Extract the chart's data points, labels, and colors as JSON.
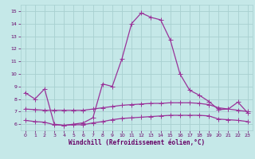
{
  "xlabel": "Windchill (Refroidissement éolien,°C)",
  "xlim": [
    -0.5,
    23.5
  ],
  "ylim": [
    5.5,
    15.5
  ],
  "yticks": [
    6,
    7,
    8,
    9,
    10,
    11,
    12,
    13,
    14,
    15
  ],
  "xticks": [
    0,
    1,
    2,
    3,
    4,
    5,
    6,
    7,
    8,
    9,
    10,
    11,
    12,
    13,
    14,
    15,
    16,
    17,
    18,
    19,
    20,
    21,
    22,
    23
  ],
  "bg_color": "#c5e8e8",
  "grid_color": "#a8d0d0",
  "line1_x": [
    0,
    1,
    2,
    3,
    4,
    5,
    6,
    7,
    8,
    9,
    10,
    11,
    12,
    13,
    14,
    15,
    16,
    17,
    18,
    19,
    20,
    21,
    22,
    23
  ],
  "line1_y": [
    8.5,
    8.0,
    8.8,
    6.0,
    5.9,
    6.0,
    6.1,
    6.5,
    9.2,
    9.0,
    11.2,
    14.0,
    14.85,
    14.5,
    14.3,
    12.7,
    10.0,
    8.7,
    8.3,
    7.8,
    7.15,
    7.2,
    7.75,
    6.9
  ],
  "line2_x": [
    0,
    1,
    2,
    3,
    4,
    5,
    6,
    7,
    8,
    9,
    10,
    11,
    12,
    13,
    14,
    15,
    16,
    17,
    18,
    19,
    20,
    21,
    22,
    23
  ],
  "line2_y": [
    7.2,
    7.15,
    7.1,
    7.1,
    7.1,
    7.1,
    7.1,
    7.2,
    7.3,
    7.4,
    7.5,
    7.55,
    7.6,
    7.65,
    7.65,
    7.7,
    7.7,
    7.7,
    7.65,
    7.55,
    7.3,
    7.2,
    7.1,
    7.0
  ],
  "line3_x": [
    0,
    1,
    2,
    3,
    4,
    5,
    6,
    7,
    8,
    9,
    10,
    11,
    12,
    13,
    14,
    15,
    16,
    17,
    18,
    19,
    20,
    21,
    22,
    23
  ],
  "line3_y": [
    6.3,
    6.2,
    6.15,
    5.95,
    5.9,
    5.95,
    5.95,
    6.1,
    6.2,
    6.35,
    6.45,
    6.5,
    6.55,
    6.6,
    6.65,
    6.7,
    6.7,
    6.7,
    6.7,
    6.65,
    6.4,
    6.35,
    6.3,
    6.2
  ],
  "line1_color": "#993399",
  "line2_color": "#993399",
  "line3_color": "#993399",
  "marker_size": 2.0,
  "tick_label_color": "#660066",
  "axis_label_color": "#660066",
  "tick_fontsize": 4.5,
  "xlabel_fontsize": 5.5
}
